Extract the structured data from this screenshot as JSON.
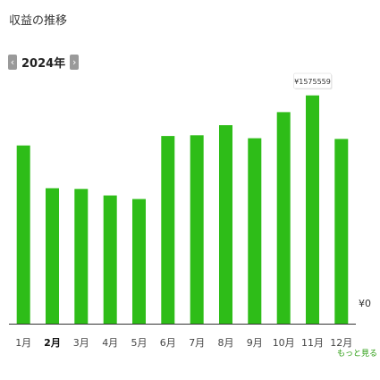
{
  "header": {
    "title": "収益の推移"
  },
  "year_nav": {
    "prev_icon": "chevron-left-icon",
    "next_icon": "chevron-right-icon",
    "prev_glyph": "‹",
    "next_glyph": "›",
    "year": "2024年"
  },
  "more_link": "もっと見る ›",
  "colors": {
    "bar": "#2ebd18",
    "axis": "#333333",
    "selected_month": "#111111",
    "link": "#2a9d10"
  },
  "chart_data": {
    "type": "bar",
    "categories": [
      "1月",
      "2月",
      "3月",
      "4月",
      "5月",
      "6月",
      "7月",
      "8月",
      "9月",
      "10月",
      "11月",
      "12月"
    ],
    "values": [
      1230000,
      935000,
      930000,
      885000,
      860000,
      1295000,
      1300000,
      1370000,
      1280000,
      1460000,
      1575559,
      1275000
    ],
    "selected_category": "2月",
    "zero_label": "¥0",
    "tooltip": {
      "category": "11月",
      "text": "¥1575559"
    },
    "title": "",
    "xlabel": "",
    "ylabel": "",
    "ylim": [
      0,
      1740000
    ],
    "grid": false,
    "legend": "none"
  }
}
